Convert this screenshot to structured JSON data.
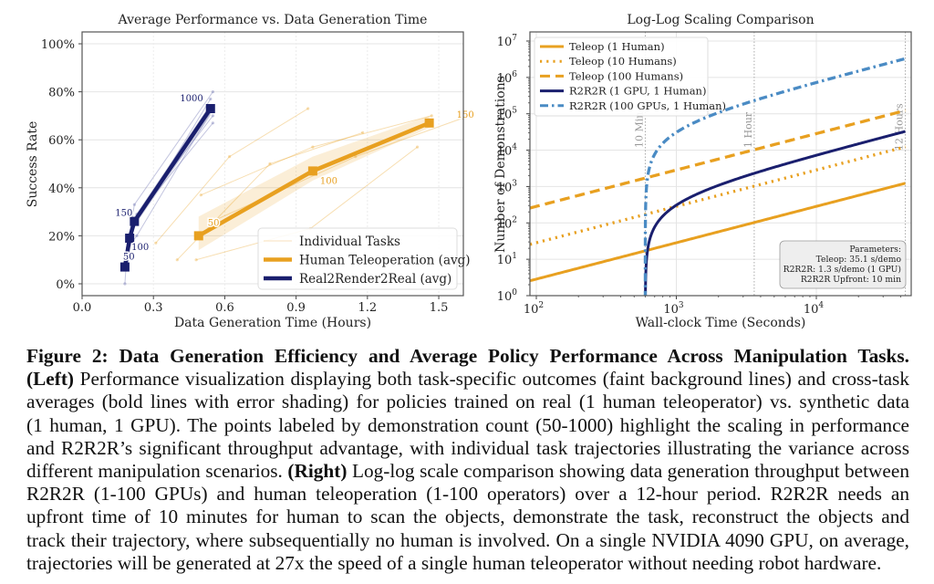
{
  "chart_data": [
    {
      "type": "line",
      "title": "Average Performance vs. Data Generation Time",
      "xlabel": "Data Generation Time (Hours)",
      "ylabel": "Success Rate",
      "xlim": [
        0.0,
        1.6
      ],
      "ylim": [
        -0.03,
        1.03
      ],
      "x_ticks": [
        "0.0",
        "0.3",
        "0.6",
        "0.9",
        "1.2",
        "1.5"
      ],
      "x_tick_values": [
        0.0,
        0.3,
        0.6,
        0.9,
        1.2,
        1.5
      ],
      "y_ticks": [
        "0%",
        "20%",
        "40%",
        "60%",
        "80%",
        "100%"
      ],
      "y_tick_values": [
        0,
        0.2,
        0.4,
        0.6,
        0.8,
        1.0
      ],
      "grid": true,
      "legend_position": "bottom-right",
      "legend": [
        "Individual Tasks",
        "Human Teleoperation (avg)",
        "Real2Render2Real (avg)"
      ],
      "series": [
        {
          "name": "Human Teleoperation (avg)",
          "color": "#E8A020",
          "x": [
            0.49,
            0.97,
            1.46
          ],
          "y": [
            0.2,
            0.47,
            0.67
          ],
          "point_labels": [
            "50",
            "100",
            "150"
          ],
          "band_lower": [
            0.14,
            0.43,
            0.65
          ],
          "band_upper": [
            0.28,
            0.53,
            0.7
          ]
        },
        {
          "name": "Real2Render2Real (avg)",
          "color": "#1A1F6E",
          "x": [
            0.18,
            0.2,
            0.22,
            0.54
          ],
          "y": [
            0.07,
            0.19,
            0.26,
            0.73
          ],
          "point_labels": [
            "50",
            "100",
            "150",
            "1000"
          ],
          "band_lower": [
            0.06,
            0.17,
            0.24,
            0.7
          ],
          "band_upper": [
            0.09,
            0.21,
            0.28,
            0.75
          ]
        }
      ],
      "individual_tasks": [
        {
          "group": "teleop",
          "x": [
            0.31,
            0.62,
            0.95
          ],
          "y": [
            0.17,
            0.53,
            0.73
          ]
        },
        {
          "group": "teleop",
          "x": [
            0.4,
            0.79,
            1.18
          ],
          "y": [
            0.1,
            0.5,
            0.63
          ]
        },
        {
          "group": "teleop",
          "x": [
            0.5,
            0.97,
            1.47
          ],
          "y": [
            0.37,
            0.57,
            0.7
          ]
        },
        {
          "group": "teleop",
          "x": [
            0.48,
            0.96,
            1.41
          ],
          "y": [
            0.1,
            0.23,
            0.57
          ]
        },
        {
          "group": "teleop",
          "x": [
            0.57,
            1.15,
            1.6
          ],
          "y": [
            0.27,
            0.53,
            0.69
          ]
        },
        {
          "group": "r2r2r",
          "x": [
            0.18,
            0.19,
            0.22,
            0.55
          ],
          "y": [
            0.0,
            0.15,
            0.33,
            0.8
          ]
        },
        {
          "group": "r2r2r",
          "x": [
            0.18,
            0.2,
            0.22,
            0.55
          ],
          "y": [
            0.07,
            0.2,
            0.27,
            0.67
          ]
        },
        {
          "group": "r2r2r",
          "x": [
            0.19,
            0.21,
            0.23,
            0.55
          ],
          "y": [
            0.07,
            0.23,
            0.29,
            0.7
          ]
        },
        {
          "group": "r2r2r",
          "x": [
            0.18,
            0.2,
            0.22,
            0.54
          ],
          "y": [
            0.07,
            0.17,
            0.25,
            0.77
          ]
        },
        {
          "group": "r2r2r",
          "x": [
            0.19,
            0.2,
            0.23,
            0.55
          ],
          "y": [
            0.08,
            0.16,
            0.2,
            0.73
          ]
        }
      ]
    },
    {
      "type": "line",
      "title": "Log-Log Scaling Comparison",
      "xlabel": "Wall-clock Time (Seconds)",
      "ylabel": "Number of Demonstrations",
      "xscale": "log",
      "yscale": "log",
      "xlim": [
        90,
        48000
      ],
      "ylim": [
        1,
        14000000
      ],
      "x_ticks": [
        "10^2",
        "10^3",
        "10^4"
      ],
      "x_tick_values": [
        100,
        1000,
        10000
      ],
      "y_ticks": [
        "10^0",
        "10^1",
        "10^2",
        "10^3",
        "10^4",
        "10^5",
        "10^6",
        "10^7"
      ],
      "y_tick_values": [
        1,
        10,
        100,
        1000,
        10000,
        100000,
        1000000,
        10000000
      ],
      "grid": true,
      "legend_position": "top-left",
      "vertical_markers": [
        {
          "label": "10 Min",
          "x": 600
        },
        {
          "label": "1 Hour",
          "x": 3600
        },
        {
          "label": "12 Hours",
          "x": 43200
        }
      ],
      "series": [
        {
          "name": "Teleop (1 Human)",
          "color": "#E8A020",
          "style": "solid",
          "seconds_per_demo": 35.1,
          "workers": 1,
          "upfront_s": 0
        },
        {
          "name": "Teleop (10 Humans)",
          "color": "#E8A020",
          "style": "dotted",
          "seconds_per_demo": 35.1,
          "workers": 10,
          "upfront_s": 0
        },
        {
          "name": "Teleop (100 Humans)",
          "color": "#E8A020",
          "style": "dashed",
          "seconds_per_demo": 35.1,
          "workers": 100,
          "upfront_s": 0
        },
        {
          "name": "R2R2R (1 GPU, 1 Human)",
          "color": "#1A1F6E",
          "style": "solid",
          "seconds_per_demo": 1.3,
          "workers": 1,
          "upfront_s": 600
        },
        {
          "name": "R2R2R (100 GPUs, 1 Human)",
          "color": "#4A8BC4",
          "style": "dashdot",
          "seconds_per_demo": 1.3,
          "workers": 100,
          "upfront_s": 600
        }
      ],
      "parameters_box": {
        "lines": [
          "Parameters:",
          "Teleop: 35.1 s/demo",
          "R2R2R: 1.3 s/demo (1 GPU)",
          "R2R2R Upfront: 10 min"
        ]
      }
    }
  ],
  "caption": {
    "lines": [
      [
        {
          "b": true,
          "t": "Figure 2: Data Generation Efficiency and Average Policy Performance Across Manipulation Tasks."
        }
      ],
      [
        {
          "b": true,
          "t": "(Left)"
        },
        {
          "b": false,
          "t": " Performance visualization displaying both task-specific outcomes (faint background lines) and cross-task"
        }
      ],
      [
        {
          "b": false,
          "t": "averages (bold lines with error shading) for policies trained on real (1 human teleoperator) vs. synthetic data"
        }
      ],
      [
        {
          "b": false,
          "t": "(1 human, 1 GPU). The points labeled by demonstration count (50-1000) highlight the scaling in performance"
        }
      ],
      [
        {
          "b": false,
          "t": "and R2R2R’s significant throughput advantage, with individual task trajectories illustrating the variance across"
        }
      ],
      [
        {
          "b": false,
          "t": "different manipulation scenarios. "
        },
        {
          "b": true,
          "t": "(Right)"
        },
        {
          "b": false,
          "t": " Log-log scale comparison showing data generation throughput between"
        }
      ],
      [
        {
          "b": false,
          "t": "R2R2R (1-100 GPUs) and human teleoperation (1-100 operators) over a 12-hour period.  R2R2R needs an"
        }
      ],
      [
        {
          "b": false,
          "t": "upfront time of 10 minutes for human to scan the objects, demonstrate the task, reconstruct the objects and"
        }
      ],
      [
        {
          "b": false,
          "t": "track their trajectory, where subsequentially no human is involved. On a single NVIDIA 4090 GPU, on average,"
        }
      ],
      [
        {
          "b": false,
          "t": "trajectories will be generated at  27x the speed of a single human teleoperator without needing robot hardware."
        }
      ]
    ]
  }
}
